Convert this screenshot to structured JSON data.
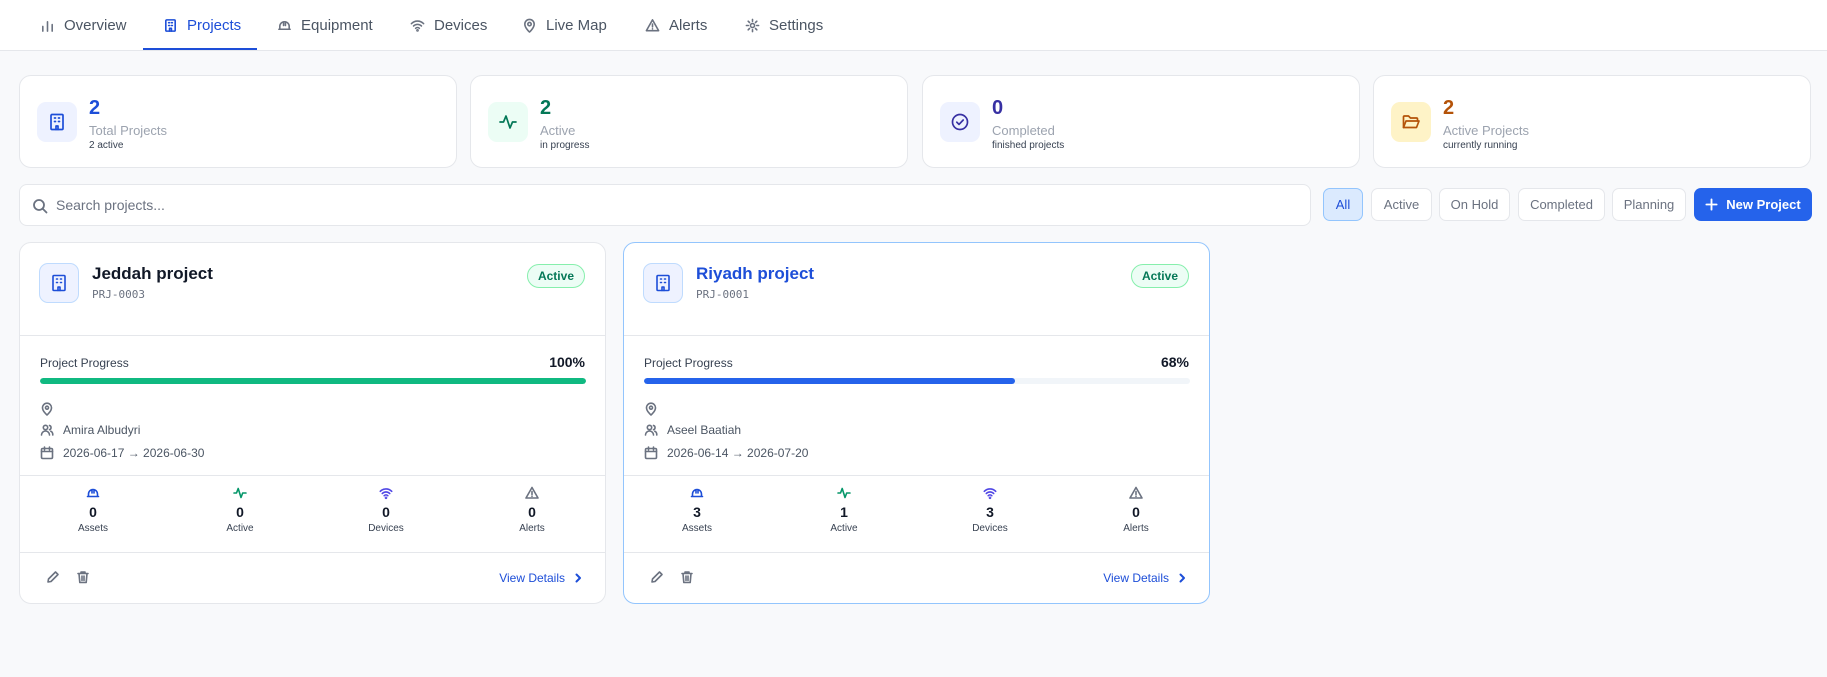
{
  "nav": {
    "tabs": [
      {
        "label": "Overview",
        "icon": "bar-chart-icon"
      },
      {
        "label": "Projects",
        "icon": "building-icon",
        "active": true
      },
      {
        "label": "Equipment",
        "icon": "hard-hat-icon"
      },
      {
        "label": "Devices",
        "icon": "wifi-icon"
      },
      {
        "label": "Live Map",
        "icon": "map-pin-icon"
      },
      {
        "label": "Alerts",
        "icon": "alert-triangle-icon"
      },
      {
        "label": "Settings",
        "icon": "gear-icon"
      }
    ]
  },
  "stats": [
    {
      "value": "2",
      "label": "Total Projects",
      "sub": "2 active",
      "color": "#1d4ed8",
      "bg": "#eef2ff",
      "icon": "building-icon"
    },
    {
      "value": "2",
      "label": "Active",
      "sub": "in progress",
      "color": "#047857",
      "bg": "#ecfdf5",
      "icon": "activity-icon"
    },
    {
      "value": "0",
      "label": "Completed",
      "sub": "finished projects",
      "color": "#3730a3",
      "bg": "#eef2ff",
      "icon": "check-circle-icon"
    },
    {
      "value": "2",
      "label": "Active Projects",
      "sub": "currently running",
      "color": "#b45309",
      "bg": "#fef3c7",
      "icon": "folder-open-icon"
    }
  ],
  "search": {
    "placeholder": "Search projects..."
  },
  "filters": [
    {
      "label": "All",
      "selected": true
    },
    {
      "label": "Active"
    },
    {
      "label": "On Hold"
    },
    {
      "label": "Completed"
    },
    {
      "label": "Planning"
    }
  ],
  "new_project_label": "New Project",
  "projects": [
    {
      "name": "Jeddah project",
      "code": "PRJ-0003",
      "status": "Active",
      "progress_label": "Project Progress",
      "progress_text": "100%",
      "progress": 1.0,
      "bar_color": "#10b981",
      "location": "",
      "manager": "Amira Albudyri",
      "dates": "2026-06-17 → 2026-06-30",
      "metrics": [
        {
          "value": "0",
          "label": "Assets"
        },
        {
          "value": "0",
          "label": "Active"
        },
        {
          "value": "0",
          "label": "Devices"
        },
        {
          "value": "0",
          "label": "Alerts"
        }
      ],
      "view_details": "View Details"
    },
    {
      "name": "Riyadh project",
      "code": "PRJ-0001",
      "status": "Active",
      "progress_label": "Project Progress",
      "progress_text": "68%",
      "progress": 0.68,
      "bar_color": "#2563eb",
      "location": "",
      "manager": "Aseel Baatiah",
      "dates": "2026-06-14 → 2026-07-20",
      "metrics": [
        {
          "value": "3",
          "label": "Assets"
        },
        {
          "value": "1",
          "label": "Active"
        },
        {
          "value": "3",
          "label": "Devices"
        },
        {
          "value": "0",
          "label": "Alerts"
        }
      ],
      "view_details": "View Details"
    }
  ]
}
